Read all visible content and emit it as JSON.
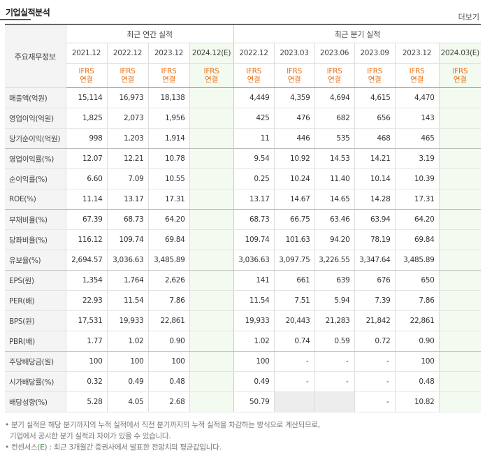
{
  "header": {
    "title": "기업실적분석",
    "more_label": "더보기"
  },
  "table": {
    "row_header_label": "주요재무정보",
    "groups": {
      "annual": "최근 연간 실적",
      "quarterly": "최근 분기 실적"
    },
    "annual_periods": [
      "2021.12",
      "2022.12",
      "2023.12",
      "2024.12(E)"
    ],
    "quarterly_periods": [
      "2022.12",
      "2023.03",
      "2023.06",
      "2023.09",
      "2023.12",
      "2024.03(E)"
    ],
    "ifrs_line1": "IFRS",
    "ifrs_line2": "연결",
    "rows": [
      {
        "label": "매출액(억원)",
        "annual": [
          "15,114",
          "16,973",
          "18,138",
          ""
        ],
        "quarterly": [
          "4,449",
          "4,359",
          "4,694",
          "4,615",
          "4,470",
          ""
        ]
      },
      {
        "label": "영업이익(억원)",
        "annual": [
          "1,825",
          "2,073",
          "1,956",
          ""
        ],
        "quarterly": [
          "425",
          "476",
          "682",
          "656",
          "143",
          ""
        ]
      },
      {
        "label": "당기순이익(억원)",
        "annual": [
          "998",
          "1,203",
          "1,914",
          ""
        ],
        "quarterly": [
          "11",
          "446",
          "535",
          "468",
          "465",
          ""
        ]
      },
      {
        "label": "영업이익률(%)",
        "annual": [
          "12.07",
          "12.21",
          "10.78",
          ""
        ],
        "quarterly": [
          "9.54",
          "10.92",
          "14.53",
          "14.21",
          "3.19",
          ""
        ]
      },
      {
        "label": "순이익률(%)",
        "annual": [
          "6.60",
          "7.09",
          "10.55",
          ""
        ],
        "quarterly": [
          "0.25",
          "10.24",
          "11.40",
          "10.14",
          "10.39",
          ""
        ]
      },
      {
        "label": "ROE(%)",
        "annual": [
          "11.14",
          "13.17",
          "17.31",
          ""
        ],
        "quarterly": [
          "13.17",
          "14.67",
          "14.65",
          "14.28",
          "17.31",
          ""
        ]
      },
      {
        "label": "부채비율(%)",
        "annual": [
          "67.39",
          "68.73",
          "64.20",
          ""
        ],
        "quarterly": [
          "68.73",
          "66.75",
          "63.46",
          "63.94",
          "64.20",
          ""
        ]
      },
      {
        "label": "당좌비율(%)",
        "annual": [
          "116.12",
          "109.74",
          "69.84",
          ""
        ],
        "quarterly": [
          "109.74",
          "101.63",
          "94.20",
          "78.19",
          "69.84",
          ""
        ]
      },
      {
        "label": "유보율(%)",
        "annual": [
          "2,694.57",
          "3,036.63",
          "3,485.89",
          ""
        ],
        "quarterly": [
          "3,036.63",
          "3,097.75",
          "3,226.55",
          "3,347.64",
          "3,485.89",
          ""
        ]
      },
      {
        "label": "EPS(원)",
        "annual": [
          "1,354",
          "1,764",
          "2,626",
          ""
        ],
        "quarterly": [
          "141",
          "661",
          "639",
          "676",
          "650",
          ""
        ]
      },
      {
        "label": "PER(배)",
        "annual": [
          "22.93",
          "11.54",
          "7.86",
          ""
        ],
        "quarterly": [
          "11.54",
          "7.51",
          "5.94",
          "7.39",
          "7.86",
          ""
        ]
      },
      {
        "label": "BPS(원)",
        "annual": [
          "17,531",
          "19,933",
          "22,861",
          ""
        ],
        "quarterly": [
          "19,933",
          "20,443",
          "21,283",
          "21,842",
          "22,861",
          ""
        ]
      },
      {
        "label": "PBR(배)",
        "annual": [
          "1.77",
          "1.02",
          "0.90",
          ""
        ],
        "quarterly": [
          "1.02",
          "0.74",
          "0.59",
          "0.72",
          "0.90",
          ""
        ]
      },
      {
        "label": "주당배당금(원)",
        "annual": [
          "100",
          "100",
          "100",
          ""
        ],
        "quarterly": [
          "100",
          "-",
          "-",
          "-",
          "100",
          ""
        ]
      },
      {
        "label": "시가배당률(%)",
        "annual": [
          "0.32",
          "0.49",
          "0.48",
          ""
        ],
        "quarterly": [
          "0.49",
          "-",
          "-",
          "-",
          "0.48",
          ""
        ]
      },
      {
        "label": "배당성향(%)",
        "annual": [
          "5.28",
          "4.05",
          "2.68",
          ""
        ],
        "quarterly": [
          "50.79",
          "",
          "",
          "-",
          "10.82",
          ""
        ]
      }
    ]
  },
  "notes": {
    "line1": "분기 실적은 해당 분기까지의 누적 실적에서 직전 분기까지의 누적 실적을 차감하는 방식으로 계산되므로,",
    "line2": "기업에서 공시한 분기 실적과 차이가 있을 수 있습니다.",
    "line3_prefix": "컨센서스(",
    "line3_e": "E",
    "line3_suffix": ") : 최근 3개월간 증권사에서 발표한 전망치의 평균값입니다."
  }
}
